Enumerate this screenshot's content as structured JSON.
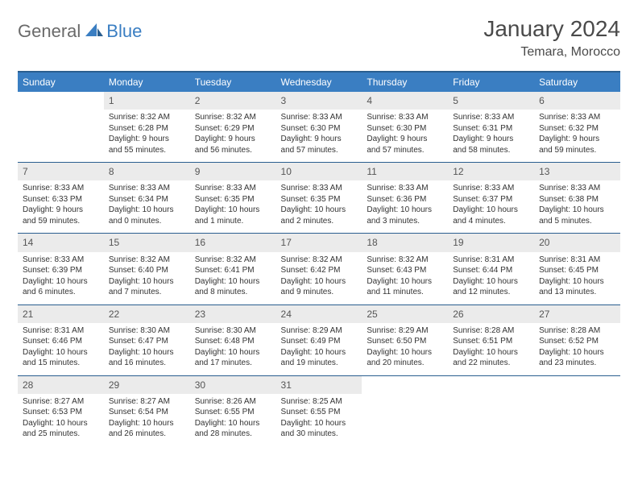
{
  "logo": {
    "part1": "General",
    "part2": "Blue"
  },
  "title": "January 2024",
  "location": "Temara, Morocco",
  "colors": {
    "header_bg": "#3a7ec2",
    "header_border": "#2a5e8f",
    "daynum_bg": "#ebebeb",
    "text": "#333333",
    "logo_gray": "#6a6a6a",
    "logo_blue": "#3a7ec2"
  },
  "weekdays": [
    "Sunday",
    "Monday",
    "Tuesday",
    "Wednesday",
    "Thursday",
    "Friday",
    "Saturday"
  ],
  "weeks": [
    [
      {
        "num": "",
        "lines": []
      },
      {
        "num": "1",
        "lines": [
          "Sunrise: 8:32 AM",
          "Sunset: 6:28 PM",
          "Daylight: 9 hours",
          "and 55 minutes."
        ]
      },
      {
        "num": "2",
        "lines": [
          "Sunrise: 8:32 AM",
          "Sunset: 6:29 PM",
          "Daylight: 9 hours",
          "and 56 minutes."
        ]
      },
      {
        "num": "3",
        "lines": [
          "Sunrise: 8:33 AM",
          "Sunset: 6:30 PM",
          "Daylight: 9 hours",
          "and 57 minutes."
        ]
      },
      {
        "num": "4",
        "lines": [
          "Sunrise: 8:33 AM",
          "Sunset: 6:30 PM",
          "Daylight: 9 hours",
          "and 57 minutes."
        ]
      },
      {
        "num": "5",
        "lines": [
          "Sunrise: 8:33 AM",
          "Sunset: 6:31 PM",
          "Daylight: 9 hours",
          "and 58 minutes."
        ]
      },
      {
        "num": "6",
        "lines": [
          "Sunrise: 8:33 AM",
          "Sunset: 6:32 PM",
          "Daylight: 9 hours",
          "and 59 minutes."
        ]
      }
    ],
    [
      {
        "num": "7",
        "lines": [
          "Sunrise: 8:33 AM",
          "Sunset: 6:33 PM",
          "Daylight: 9 hours",
          "and 59 minutes."
        ]
      },
      {
        "num": "8",
        "lines": [
          "Sunrise: 8:33 AM",
          "Sunset: 6:34 PM",
          "Daylight: 10 hours",
          "and 0 minutes."
        ]
      },
      {
        "num": "9",
        "lines": [
          "Sunrise: 8:33 AM",
          "Sunset: 6:35 PM",
          "Daylight: 10 hours",
          "and 1 minute."
        ]
      },
      {
        "num": "10",
        "lines": [
          "Sunrise: 8:33 AM",
          "Sunset: 6:35 PM",
          "Daylight: 10 hours",
          "and 2 minutes."
        ]
      },
      {
        "num": "11",
        "lines": [
          "Sunrise: 8:33 AM",
          "Sunset: 6:36 PM",
          "Daylight: 10 hours",
          "and 3 minutes."
        ]
      },
      {
        "num": "12",
        "lines": [
          "Sunrise: 8:33 AM",
          "Sunset: 6:37 PM",
          "Daylight: 10 hours",
          "and 4 minutes."
        ]
      },
      {
        "num": "13",
        "lines": [
          "Sunrise: 8:33 AM",
          "Sunset: 6:38 PM",
          "Daylight: 10 hours",
          "and 5 minutes."
        ]
      }
    ],
    [
      {
        "num": "14",
        "lines": [
          "Sunrise: 8:33 AM",
          "Sunset: 6:39 PM",
          "Daylight: 10 hours",
          "and 6 minutes."
        ]
      },
      {
        "num": "15",
        "lines": [
          "Sunrise: 8:32 AM",
          "Sunset: 6:40 PM",
          "Daylight: 10 hours",
          "and 7 minutes."
        ]
      },
      {
        "num": "16",
        "lines": [
          "Sunrise: 8:32 AM",
          "Sunset: 6:41 PM",
          "Daylight: 10 hours",
          "and 8 minutes."
        ]
      },
      {
        "num": "17",
        "lines": [
          "Sunrise: 8:32 AM",
          "Sunset: 6:42 PM",
          "Daylight: 10 hours",
          "and 9 minutes."
        ]
      },
      {
        "num": "18",
        "lines": [
          "Sunrise: 8:32 AM",
          "Sunset: 6:43 PM",
          "Daylight: 10 hours",
          "and 11 minutes."
        ]
      },
      {
        "num": "19",
        "lines": [
          "Sunrise: 8:31 AM",
          "Sunset: 6:44 PM",
          "Daylight: 10 hours",
          "and 12 minutes."
        ]
      },
      {
        "num": "20",
        "lines": [
          "Sunrise: 8:31 AM",
          "Sunset: 6:45 PM",
          "Daylight: 10 hours",
          "and 13 minutes."
        ]
      }
    ],
    [
      {
        "num": "21",
        "lines": [
          "Sunrise: 8:31 AM",
          "Sunset: 6:46 PM",
          "Daylight: 10 hours",
          "and 15 minutes."
        ]
      },
      {
        "num": "22",
        "lines": [
          "Sunrise: 8:30 AM",
          "Sunset: 6:47 PM",
          "Daylight: 10 hours",
          "and 16 minutes."
        ]
      },
      {
        "num": "23",
        "lines": [
          "Sunrise: 8:30 AM",
          "Sunset: 6:48 PM",
          "Daylight: 10 hours",
          "and 17 minutes."
        ]
      },
      {
        "num": "24",
        "lines": [
          "Sunrise: 8:29 AM",
          "Sunset: 6:49 PM",
          "Daylight: 10 hours",
          "and 19 minutes."
        ]
      },
      {
        "num": "25",
        "lines": [
          "Sunrise: 8:29 AM",
          "Sunset: 6:50 PM",
          "Daylight: 10 hours",
          "and 20 minutes."
        ]
      },
      {
        "num": "26",
        "lines": [
          "Sunrise: 8:28 AM",
          "Sunset: 6:51 PM",
          "Daylight: 10 hours",
          "and 22 minutes."
        ]
      },
      {
        "num": "27",
        "lines": [
          "Sunrise: 8:28 AM",
          "Sunset: 6:52 PM",
          "Daylight: 10 hours",
          "and 23 minutes."
        ]
      }
    ],
    [
      {
        "num": "28",
        "lines": [
          "Sunrise: 8:27 AM",
          "Sunset: 6:53 PM",
          "Daylight: 10 hours",
          "and 25 minutes."
        ]
      },
      {
        "num": "29",
        "lines": [
          "Sunrise: 8:27 AM",
          "Sunset: 6:54 PM",
          "Daylight: 10 hours",
          "and 26 minutes."
        ]
      },
      {
        "num": "30",
        "lines": [
          "Sunrise: 8:26 AM",
          "Sunset: 6:55 PM",
          "Daylight: 10 hours",
          "and 28 minutes."
        ]
      },
      {
        "num": "31",
        "lines": [
          "Sunrise: 8:25 AM",
          "Sunset: 6:55 PM",
          "Daylight: 10 hours",
          "and 30 minutes."
        ]
      },
      {
        "num": "",
        "lines": []
      },
      {
        "num": "",
        "lines": []
      },
      {
        "num": "",
        "lines": []
      }
    ]
  ]
}
